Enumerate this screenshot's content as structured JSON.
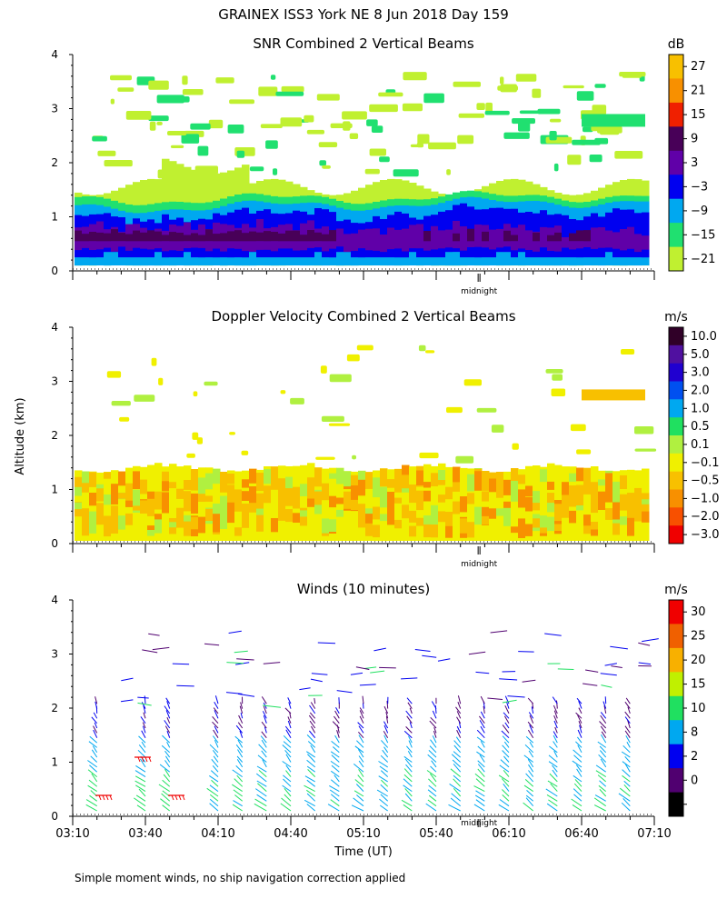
{
  "header": {
    "title": "GRAINEX ISS3 York NE   8 Jun 2018 Day 159"
  },
  "footer": {
    "note": "Simple moment winds, no ship navigation correction applied"
  },
  "axes": {
    "ylabel": "Altitude (km)",
    "xlabel": "Time (UT)",
    "midnight_label": "midnight",
    "y_ticks": [
      "0",
      "1",
      "2",
      "3",
      "4"
    ],
    "x_tick_labels": [
      "03:10",
      "03:40",
      "04:10",
      "04:40",
      "05:10",
      "05:40",
      "06:10",
      "06:40",
      "07:10"
    ]
  },
  "panels": {
    "snr": {
      "title": "SNR Combined 2 Vertical Beams",
      "unit": "dB",
      "levels": [
        "27",
        "21",
        "15",
        "9",
        "3",
        "−3",
        "−9",
        "−15",
        "−21"
      ]
    },
    "doppler": {
      "title": "Doppler Velocity Combined 2 Vertical Beams",
      "unit": "m/s",
      "levels": [
        "10.0",
        "5.0",
        "3.0",
        "2.0",
        "1.0",
        "0.5",
        "0.1",
        "−0.1",
        "−0.5",
        "−1.0",
        "−2.0",
        "−3.0"
      ]
    },
    "winds": {
      "title": "Winds (10 minutes)",
      "unit": "m/s",
      "levels": [
        "30",
        "25",
        "20",
        "15",
        "10",
        "8",
        "2",
        "0"
      ]
    }
  },
  "colors": {
    "snr_scale": [
      "#f8c000",
      "#f89000",
      "#f02000",
      "#480058",
      "#6000a8",
      "#0000f0",
      "#00a8f0",
      "#20e070",
      "#c0f030"
    ],
    "doppler_scale": [
      "#300028",
      "#5010a0",
      "#2000d0",
      "#0050f0",
      "#00a8f0",
      "#20e060",
      "#b0f040",
      "#f0f000",
      "#f8c000",
      "#f89000",
      "#f85000",
      "#f00000"
    ],
    "winds_scale": [
      "#f00000",
      "#f06000",
      "#f8b000",
      "#c0f000",
      "#20e060",
      "#00a8f0",
      "#0000f0",
      "#500070",
      "#000000"
    ]
  },
  "chart_data": [
    {
      "type": "heatmap",
      "name": "snr",
      "title": "SNR Combined 2 Vertical Beams",
      "colorbar_label": "dB",
      "colorbar_levels": [
        27,
        21,
        15,
        9,
        3,
        -3,
        -9,
        -15,
        -21
      ],
      "xlabel": "",
      "ylabel": "Altitude (km)",
      "ylim": [
        0,
        4
      ],
      "xlim": [
        "03:10",
        "07:10"
      ],
      "time_start_hours": 3.1667,
      "time_end_hours": 7.1667,
      "description_layers": [
        {
          "bottom_km": 0.1,
          "top_km": 1.7,
          "level_db": -21
        },
        {
          "bottom_km": 0.1,
          "top_km": 1.35,
          "level_db": -15
        },
        {
          "bottom_km": 0.1,
          "top_km": 1.2,
          "level_db": -9
        },
        {
          "bottom_km": 0.25,
          "top_km": 1.05,
          "level_db": -3
        },
        {
          "bottom_km": 0.45,
          "top_km": 0.85,
          "level_db": 3
        },
        {
          "bottom_km": 0.55,
          "top_km": 0.7,
          "level_db": 9
        }
      ]
    },
    {
      "type": "heatmap",
      "name": "doppler",
      "title": "Doppler Velocity Combined 2 Vertical Beams",
      "colorbar_label": "m/s",
      "colorbar_levels": [
        10.0,
        5.0,
        3.0,
        2.0,
        1.0,
        0.5,
        0.1,
        -0.1,
        -0.5,
        -1.0,
        -2.0,
        -3.0
      ],
      "ylabel": "Altitude (km)",
      "ylim": [
        0,
        4
      ],
      "xlim": [
        "03:10",
        "07:10"
      ],
      "description_layers": [
        {
          "bottom_km": 0.1,
          "top_km": 1.45,
          "level_ms": -0.1
        },
        {
          "bottom_km": 0.2,
          "top_km": 1.3,
          "level_ms": -0.5
        }
      ]
    },
    {
      "type": "scatter",
      "name": "winds",
      "title": "Winds (10 minutes)",
      "colorbar_label": "m/s",
      "colorbar_levels": [
        30,
        25,
        20,
        15,
        10,
        8,
        2,
        0
      ],
      "xlabel": "Time (UT)",
      "ylabel": "Altitude (km)",
      "ylim": [
        0,
        4
      ],
      "xlim": [
        "03:10",
        "07:10"
      ],
      "profile_times": [
        "03:20",
        "03:40",
        "03:50",
        "04:10",
        "04:20",
        "04:30",
        "04:40",
        "04:50",
        "05:00",
        "05:10",
        "05:20",
        "05:30",
        "05:40",
        "05:50",
        "06:00",
        "06:10",
        "06:20",
        "06:30",
        "06:40",
        "06:50",
        "07:00"
      ],
      "typical_speed_ms": {
        "low_km": 12,
        "mid_km": 9,
        "high_km": 5
      }
    }
  ]
}
